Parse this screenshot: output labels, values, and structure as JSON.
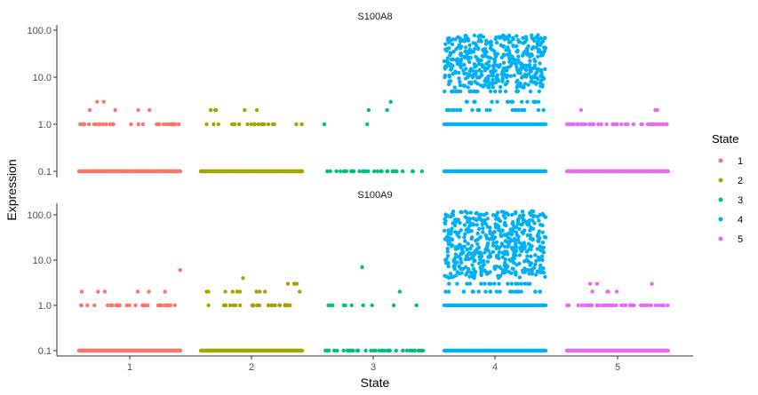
{
  "chart_data": {
    "type": "scatter",
    "title": "",
    "xlabel": "State",
    "ylabel": "Expression",
    "x_categories": [
      "1",
      "2",
      "3",
      "4",
      "5"
    ],
    "y_scale": "log10",
    "ylim": [
      0.1,
      100.0
    ],
    "y_ticks": [
      "0.1",
      "1.0",
      "10.0",
      "100.0"
    ],
    "legend": {
      "title": "State",
      "position": "right",
      "entries": [
        {
          "label": "1",
          "color": "#F8766D"
        },
        {
          "label": "2",
          "color": "#A3A500"
        },
        {
          "label": "3",
          "color": "#00BF7D"
        },
        {
          "label": "4",
          "color": "#00B0F6"
        },
        {
          "label": "5",
          "color": "#E76BF3"
        }
      ]
    },
    "panels": [
      {
        "title": "S100A8",
        "states": [
          {
            "state": "1",
            "levels": [
              {
                "value": 0.1,
                "count": 120
              },
              {
                "value": 1.0,
                "count": 38
              },
              {
                "value": 2.0,
                "count": 4
              },
              {
                "value": 3.0,
                "count": 2
              }
            ]
          },
          {
            "state": "2",
            "levels": [
              {
                "value": 0.1,
                "count": 120
              },
              {
                "value": 1.0,
                "count": 20
              },
              {
                "value": 2.0,
                "count": 6
              }
            ]
          },
          {
            "state": "3",
            "levels": [
              {
                "value": 0.1,
                "count": 30
              },
              {
                "value": 1.0,
                "count": 2
              },
              {
                "value": 2.0,
                "count": 2
              },
              {
                "value": 3.0,
                "count": 1
              }
            ]
          },
          {
            "state": "4",
            "levels": [
              {
                "value": 0.1,
                "count": 90
              },
              {
                "value": 1.0,
                "count": 60
              },
              {
                "value": 2.0,
                "count": 25
              },
              {
                "value": 3.0,
                "count": 18
              },
              {
                "value": 5.0,
                "count": 22
              }
            ],
            "high_range": [
              6,
              80
            ],
            "high_count": 450
          },
          {
            "state": "5",
            "levels": [
              {
                "value": 0.1,
                "count": 120
              },
              {
                "value": 1.0,
                "count": 50
              },
              {
                "value": 2.0,
                "count": 3
              }
            ]
          }
        ]
      },
      {
        "title": "S100A9",
        "states": [
          {
            "state": "1",
            "levels": [
              {
                "value": 0.1,
                "count": 120
              },
              {
                "value": 1.0,
                "count": 30
              },
              {
                "value": 2.0,
                "count": 6
              },
              {
                "value": 6.0,
                "count": 1
              }
            ]
          },
          {
            "state": "2",
            "levels": [
              {
                "value": 0.1,
                "count": 120
              },
              {
                "value": 1.0,
                "count": 28
              },
              {
                "value": 2.0,
                "count": 10
              },
              {
                "value": 3.0,
                "count": 4
              },
              {
                "value": 4.0,
                "count": 1
              }
            ]
          },
          {
            "state": "3",
            "levels": [
              {
                "value": 0.1,
                "count": 40
              },
              {
                "value": 1.0,
                "count": 10
              },
              {
                "value": 2.0,
                "count": 1
              },
              {
                "value": 7.0,
                "count": 1
              }
            ]
          },
          {
            "state": "4",
            "levels": [
              {
                "value": 0.1,
                "count": 90
              },
              {
                "value": 1.0,
                "count": 60
              },
              {
                "value": 2.0,
                "count": 22
              },
              {
                "value": 3.0,
                "count": 18
              }
            ],
            "high_range": [
              4,
              120
            ],
            "high_count": 520
          },
          {
            "state": "5",
            "levels": [
              {
                "value": 0.1,
                "count": 120
              },
              {
                "value": 1.0,
                "count": 45
              },
              {
                "value": 2.0,
                "count": 4
              },
              {
                "value": 3.0,
                "count": 3
              }
            ]
          }
        ]
      }
    ]
  }
}
